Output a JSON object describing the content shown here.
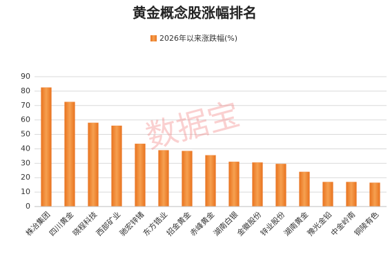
{
  "chart_data": {
    "type": "bar",
    "title": "黄金概念股涨幅排名",
    "watermark": "数据宝",
    "categories": [
      "株冶集团",
      "四川黄金",
      "晓程科技",
      "西部矿业",
      "驰宏锌锗",
      "东方锆业",
      "招金黄金",
      "赤峰黄金",
      "湖南白银",
      "金徽股份",
      "锌业股份",
      "湖南黄金",
      "豫光金铅",
      "中金岭南",
      "铜陵有色"
    ],
    "series": [
      {
        "name": "2026年以来涨跌幅(%)",
        "color": "#ed7d31",
        "values": [
          82.5,
          72.5,
          58,
          56,
          43.5,
          39,
          38.5,
          35.5,
          31,
          30.5,
          29.5,
          24,
          17,
          17,
          16.5
        ]
      }
    ],
    "ylim": [
      0,
      90
    ],
    "yticks": [
      0,
      10,
      20,
      30,
      40,
      50,
      60,
      70,
      80,
      90
    ],
    "grid": true
  }
}
